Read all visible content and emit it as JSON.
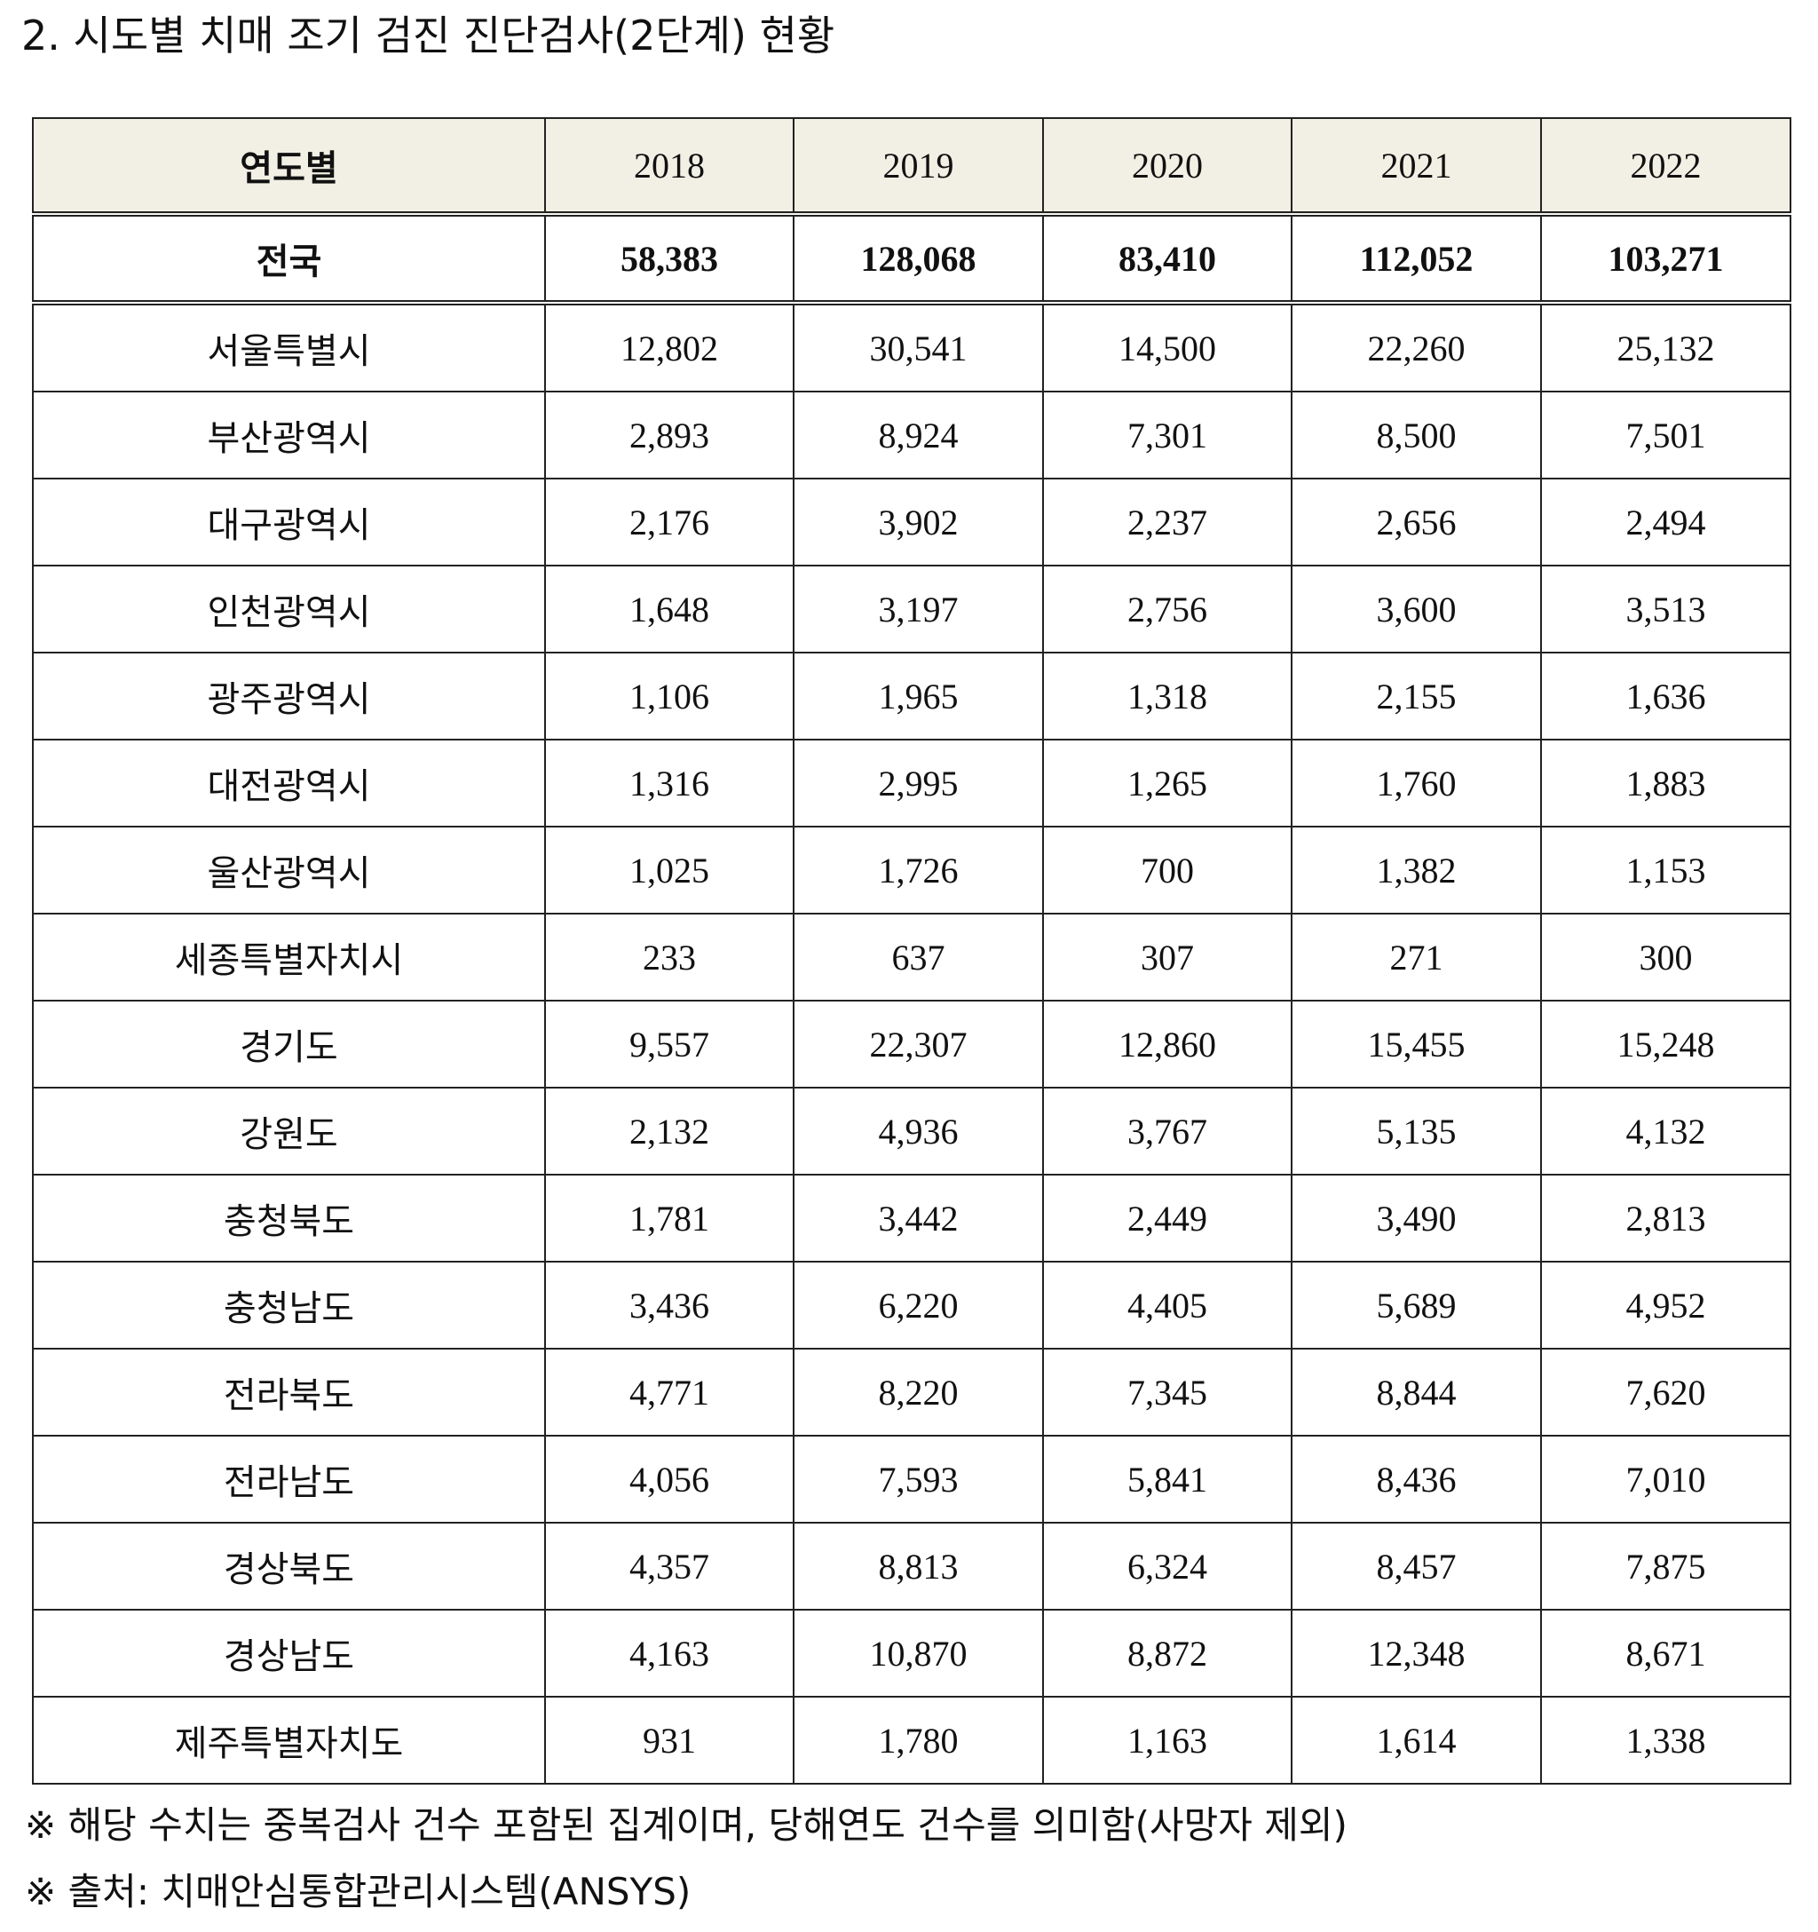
{
  "title": "2. 시도별 치매 조기 검진 진단검사(2단계) 현황",
  "table": {
    "header": [
      "연도별",
      "2018",
      "2019",
      "2020",
      "2021",
      "2022"
    ],
    "rows": [
      [
        "전국",
        "58,383",
        "128,068",
        "83,410",
        "112,052",
        "103,271"
      ],
      [
        "서울특별시",
        "12,802",
        "30,541",
        "14,500",
        "22,260",
        "25,132"
      ],
      [
        "부산광역시",
        "2,893",
        "8,924",
        "7,301",
        "8,500",
        "7,501"
      ],
      [
        "대구광역시",
        "2,176",
        "3,902",
        "2,237",
        "2,656",
        "2,494"
      ],
      [
        "인천광역시",
        "1,648",
        "3,197",
        "2,756",
        "3,600",
        "3,513"
      ],
      [
        "광주광역시",
        "1,106",
        "1,965",
        "1,318",
        "2,155",
        "1,636"
      ],
      [
        "대전광역시",
        "1,316",
        "2,995",
        "1,265",
        "1,760",
        "1,883"
      ],
      [
        "울산광역시",
        "1,025",
        "1,726",
        "700",
        "1,382",
        "1,153"
      ],
      [
        "세종특별자치시",
        "233",
        "637",
        "307",
        "271",
        "300"
      ],
      [
        "경기도",
        "9,557",
        "22,307",
        "12,860",
        "15,455",
        "15,248"
      ],
      [
        "강원도",
        "2,132",
        "4,936",
        "3,767",
        "5,135",
        "4,132"
      ],
      [
        "충청북도",
        "1,781",
        "3,442",
        "2,449",
        "3,490",
        "2,813"
      ],
      [
        "충청남도",
        "3,436",
        "6,220",
        "4,405",
        "5,689",
        "4,952"
      ],
      [
        "전라북도",
        "4,771",
        "8,220",
        "7,345",
        "8,844",
        "7,620"
      ],
      [
        "전라남도",
        "4,056",
        "7,593",
        "5,841",
        "8,436",
        "7,010"
      ],
      [
        "경상북도",
        "4,357",
        "8,813",
        "6,324",
        "8,457",
        "7,875"
      ],
      [
        "경상남도",
        "4,163",
        "10,870",
        "8,872",
        "12,348",
        "8,671"
      ],
      [
        "제주특별자치도",
        "931",
        "1,780",
        "1,163",
        "1,614",
        "1,338"
      ]
    ]
  },
  "notes": [
    "※ 해당 수치는 중복검사 건수 포함된 집계이며, 당해연도 건수를 의미함(사망자 제외)",
    "※  출처: 치매안심통합관리시스템(ANSYS)"
  ]
}
